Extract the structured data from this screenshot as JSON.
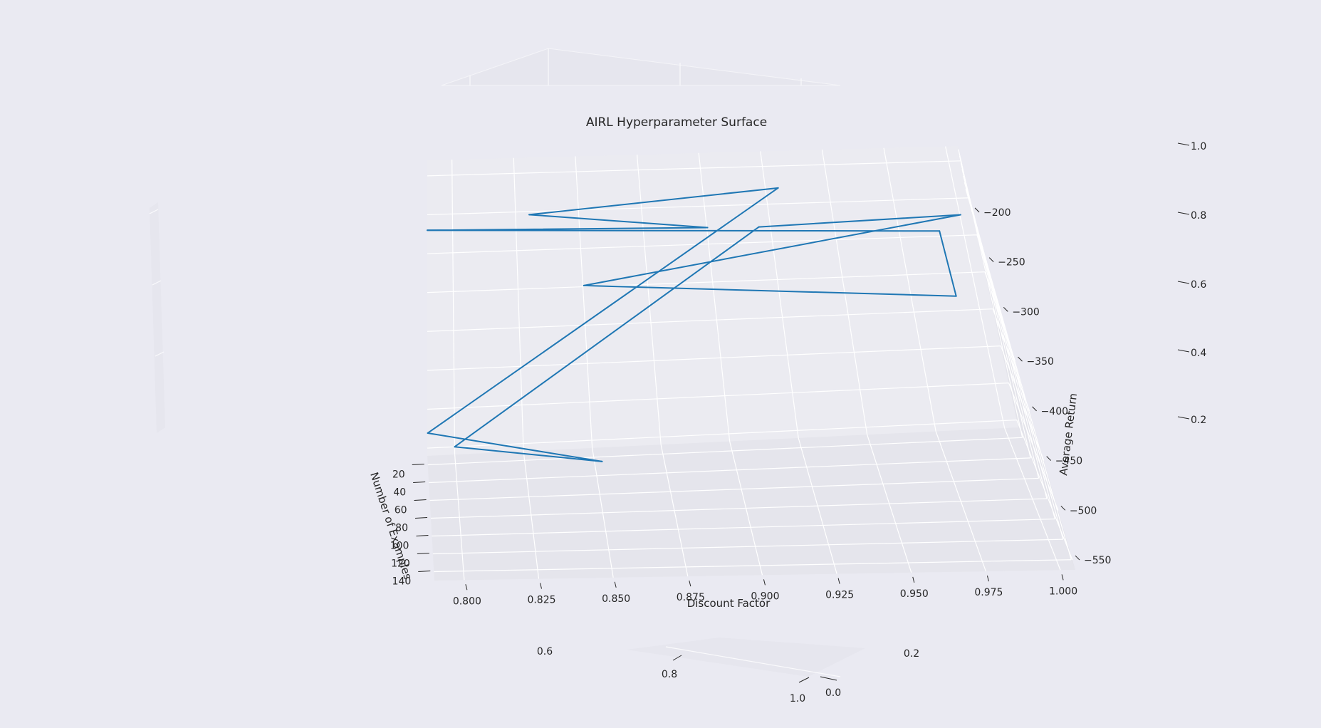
{
  "chart_data": [
    {
      "type": "line3d",
      "title": "AIRL Hyperparameter Surface",
      "xlabel": "Number of Examples",
      "ylabel": "Discount Factor",
      "zlabel": "Average Return",
      "x_ticks": [
        "20",
        "40",
        "60",
        "80",
        "100",
        "120",
        "140"
      ],
      "y_ticks": [
        "0.800",
        "0.825",
        "0.850",
        "0.875",
        "0.900",
        "0.925",
        "0.950",
        "0.975",
        "1.000"
      ],
      "z_ticks": [
        "−200",
        "−250",
        "−300",
        "−350",
        "−400",
        "−450",
        "−500",
        "−550"
      ],
      "xlim": [
        10,
        150
      ],
      "ylim": [
        0.79,
        1.005
      ],
      "zlim": [
        -560,
        -180
      ],
      "grid": true,
      "series": [
        {
          "color": "#1f77b4",
          "points": [
            {
              "x": 10,
              "y": 0.79,
              "z": -270
            },
            {
              "x": 100,
              "y": 0.99,
              "z": -240
            },
            {
              "x": 120,
              "y": 0.99,
              "z": -300
            },
            {
              "x": 35,
              "y": 0.85,
              "z": -330
            },
            {
              "x": 130,
              "y": 1.0,
              "z": -210
            },
            {
              "x": 60,
              "y": 0.92,
              "z": -250
            },
            {
              "x": 10,
              "y": 0.8,
              "z": -550
            },
            {
              "x": 140,
              "y": 0.85,
              "z": -450
            },
            {
              "x": 20,
              "y": 0.79,
              "z": -520
            },
            {
              "x": 70,
              "y": 0.93,
              "z": -200
            },
            {
              "x": 100,
              "y": 0.83,
              "z": -210
            },
            {
              "x": 40,
              "y": 0.9,
              "z": -260
            },
            {
              "x": 10,
              "y": 0.79,
              "z": -270
            }
          ]
        }
      ]
    },
    {
      "type": "empty3d",
      "title": "",
      "ticks_a": [
        "0.2",
        "0.4",
        "0.6",
        "0.8",
        "1.0"
      ],
      "ticks_b": [
        "0.0",
        "0.2",
        "0.6",
        "0.8",
        "1.0"
      ]
    }
  ]
}
